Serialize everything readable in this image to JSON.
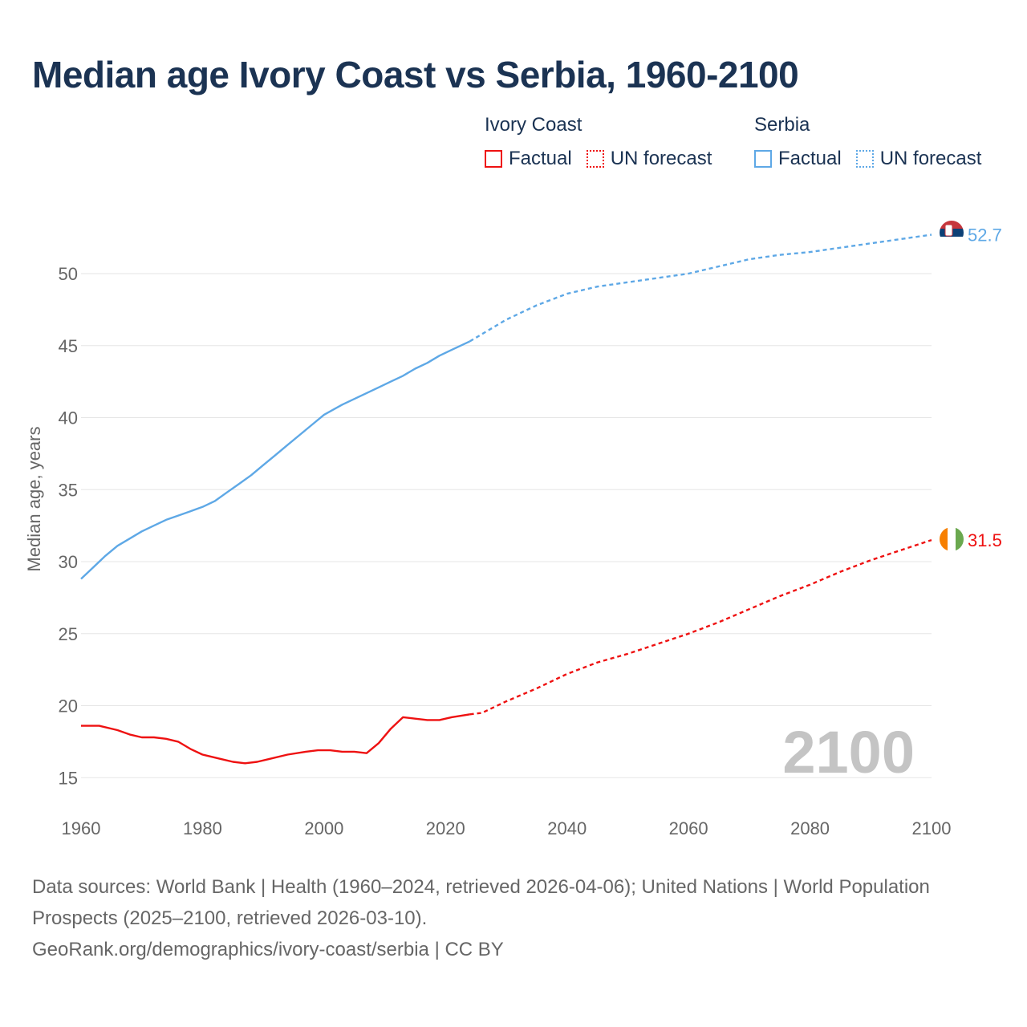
{
  "title": "Median age Ivory Coast vs Serbia, 1960-2100",
  "legend": {
    "groups": [
      {
        "name": "Ivory Coast",
        "factual_label": "Factual",
        "forecast_label": "UN forecast",
        "color": "#ee1111"
      },
      {
        "name": "Serbia",
        "factual_label": "Factual",
        "forecast_label": "UN forecast",
        "color": "#5ea8e6"
      }
    ]
  },
  "watermark_year": "2100",
  "footer": {
    "line1": "Data sources: World Bank | Health (1960–2024, retrieved 2026-04-06); United Nations | World Population Prospects (2025–2100, retrieved 2026-03-10).",
    "line2": "GeoRank.org/demographics/ivory-coast/serbia | CC BY"
  },
  "chart_data": {
    "type": "line",
    "title": "Median age Ivory Coast vs Serbia, 1960-2100",
    "xlabel": "",
    "ylabel": "Median age, years",
    "xlim": [
      1960,
      2100
    ],
    "ylim": [
      13,
      54
    ],
    "x_ticks": [
      1960,
      1980,
      2000,
      2020,
      2040,
      2060,
      2080,
      2100
    ],
    "y_ticks": [
      15,
      20,
      25,
      30,
      35,
      40,
      45,
      50
    ],
    "grid": true,
    "factual_end_year": 2024,
    "series": [
      {
        "name": "Ivory Coast",
        "color": "#ee1111",
        "end_label": "31.5",
        "x": [
          1960,
          1963,
          1966,
          1968,
          1970,
          1972,
          1974,
          1976,
          1978,
          1980,
          1983,
          1985,
          1987,
          1989,
          1991,
          1994,
          1997,
          1999,
          2001,
          2003,
          2005,
          2007,
          2009,
          2011,
          2013,
          2015,
          2017,
          2019,
          2021,
          2024,
          2026,
          2030,
          2035,
          2040,
          2045,
          2050,
          2055,
          2060,
          2065,
          2070,
          2075,
          2080,
          2085,
          2090,
          2095,
          2100
        ],
        "y": [
          18.6,
          18.6,
          18.3,
          18.0,
          17.8,
          17.8,
          17.7,
          17.5,
          17.0,
          16.6,
          16.3,
          16.1,
          16.0,
          16.1,
          16.3,
          16.6,
          16.8,
          16.9,
          16.9,
          16.8,
          16.8,
          16.7,
          17.4,
          18.4,
          19.2,
          19.1,
          19.0,
          19.0,
          19.2,
          19.4,
          19.5,
          20.3,
          21.2,
          22.2,
          23.0,
          23.6,
          24.3,
          25.0,
          25.8,
          26.7,
          27.6,
          28.4,
          29.3,
          30.1,
          30.8,
          31.5
        ]
      },
      {
        "name": "Serbia",
        "color": "#5ea8e6",
        "end_label": "52.7",
        "x": [
          1960,
          1962,
          1964,
          1966,
          1968,
          1970,
          1972,
          1974,
          1976,
          1978,
          1980,
          1982,
          1984,
          1986,
          1988,
          1990,
          1992,
          1994,
          1996,
          1998,
          2000,
          2003,
          2006,
          2009,
          2011,
          2013,
          2015,
          2017,
          2019,
          2021,
          2024,
          2026,
          2030,
          2035,
          2040,
          2045,
          2050,
          2055,
          2060,
          2065,
          2070,
          2075,
          2080,
          2085,
          2090,
          2095,
          2100
        ],
        "y": [
          28.8,
          29.6,
          30.4,
          31.1,
          31.6,
          32.1,
          32.5,
          32.9,
          33.2,
          33.5,
          33.8,
          34.2,
          34.8,
          35.4,
          36.0,
          36.7,
          37.4,
          38.1,
          38.8,
          39.5,
          40.2,
          40.9,
          41.5,
          42.1,
          42.5,
          42.9,
          43.4,
          43.8,
          44.3,
          44.7,
          45.3,
          45.8,
          46.8,
          47.8,
          48.6,
          49.1,
          49.4,
          49.7,
          50.0,
          50.5,
          51.0,
          51.3,
          51.5,
          51.8,
          52.1,
          52.4,
          52.7
        ]
      }
    ]
  }
}
